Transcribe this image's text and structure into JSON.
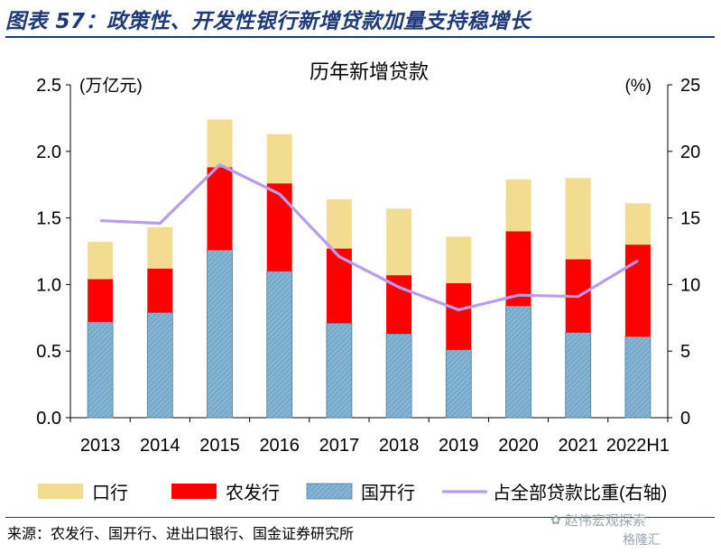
{
  "header": {
    "title": "图表 57：政策性、开发性银行新增贷款加量支持稳增长"
  },
  "chart_data": {
    "type": "bar",
    "stacked": true,
    "title": "历年新增贷款",
    "left_axis_unit": "(万亿元)",
    "right_axis_unit": "(%)",
    "categories": [
      "2013",
      "2014",
      "2015",
      "2016",
      "2017",
      "2018",
      "2019",
      "2020",
      "2021",
      "2022H1"
    ],
    "ylim": [
      0,
      2.5
    ],
    "yticks": [
      "0.0",
      "0.5",
      "1.0",
      "1.5",
      "2.0",
      "2.5"
    ],
    "y2lim": [
      0,
      25
    ],
    "y2ticks": [
      "0",
      "5",
      "10",
      "15",
      "20",
      "25"
    ],
    "series": [
      {
        "name": "国开行",
        "values": [
          0.72,
          0.79,
          1.26,
          1.1,
          0.71,
          0.63,
          0.51,
          0.84,
          0.64,
          0.61
        ],
        "color": "#7fb0d0",
        "hatch": true
      },
      {
        "name": "农发行",
        "values": [
          0.32,
          0.33,
          0.62,
          0.66,
          0.56,
          0.44,
          0.5,
          0.56,
          0.55,
          0.69
        ],
        "color": "#ff0000"
      },
      {
        "name": "口行",
        "values": [
          0.28,
          0.31,
          0.36,
          0.37,
          0.37,
          0.5,
          0.35,
          0.39,
          0.61,
          0.31
        ],
        "color": "#f1dc8f"
      }
    ],
    "line": {
      "name": "占全部贷款比重(右轴)",
      "values": [
        14.8,
        14.6,
        19.0,
        16.8,
        12.1,
        9.8,
        8.1,
        9.2,
        9.1,
        11.8
      ],
      "color": "#b89cf0"
    },
    "legend_position": "bottom"
  },
  "footer": {
    "source": "来源：农发行、国开行、进出口银行、国金证券研究所"
  },
  "watermark": {
    "line1": "赵伟宏观探索",
    "line2": "格隆汇"
  }
}
